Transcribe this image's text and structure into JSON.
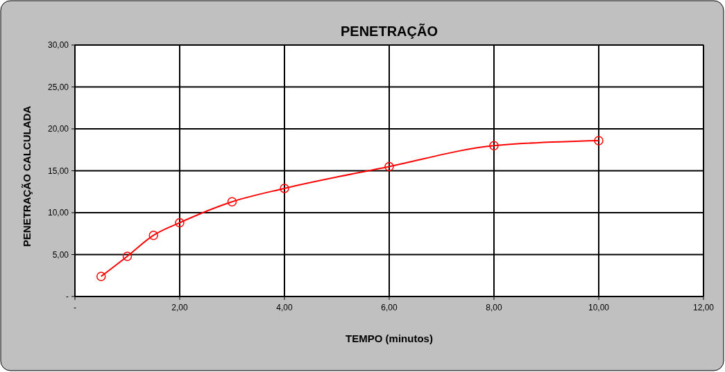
{
  "chart_data": {
    "type": "line",
    "title": "PENETRAÇÃO",
    "xlabel": "TEMPO (minutos)",
    "ylabel": "PENETRAÇÃO CALCULADA",
    "x": [
      0.5,
      1,
      1.5,
      2,
      3,
      4,
      6,
      8,
      10
    ],
    "series": [
      {
        "color": "#ff0000",
        "values": [
          2.4,
          4.8,
          7.3,
          8.8,
          11.3,
          12.9,
          15.5,
          18.0,
          18.6
        ]
      }
    ],
    "xlim": [
      0,
      12
    ],
    "xticks": [
      {
        "value": 0,
        "label": "-"
      },
      {
        "value": 2,
        "label": "2,00"
      },
      {
        "value": 4,
        "label": "4,00"
      },
      {
        "value": 6,
        "label": "6,00"
      },
      {
        "value": 8,
        "label": "8,00"
      },
      {
        "value": 10,
        "label": "10,00"
      },
      {
        "value": 12,
        "label": "12,00"
      }
    ],
    "ylim": [
      0,
      30
    ],
    "yticks": [
      {
        "value": 0,
        "label": "-"
      },
      {
        "value": 5,
        "label": "5,00"
      },
      {
        "value": 10,
        "label": "10,00"
      },
      {
        "value": 15,
        "label": "15,00"
      },
      {
        "value": 20,
        "label": "20,00"
      },
      {
        "value": 25,
        "label": "25,00"
      },
      {
        "value": 30,
        "label": "30,00"
      }
    ],
    "grid": true,
    "marker": "circle",
    "line_style": "solid"
  }
}
